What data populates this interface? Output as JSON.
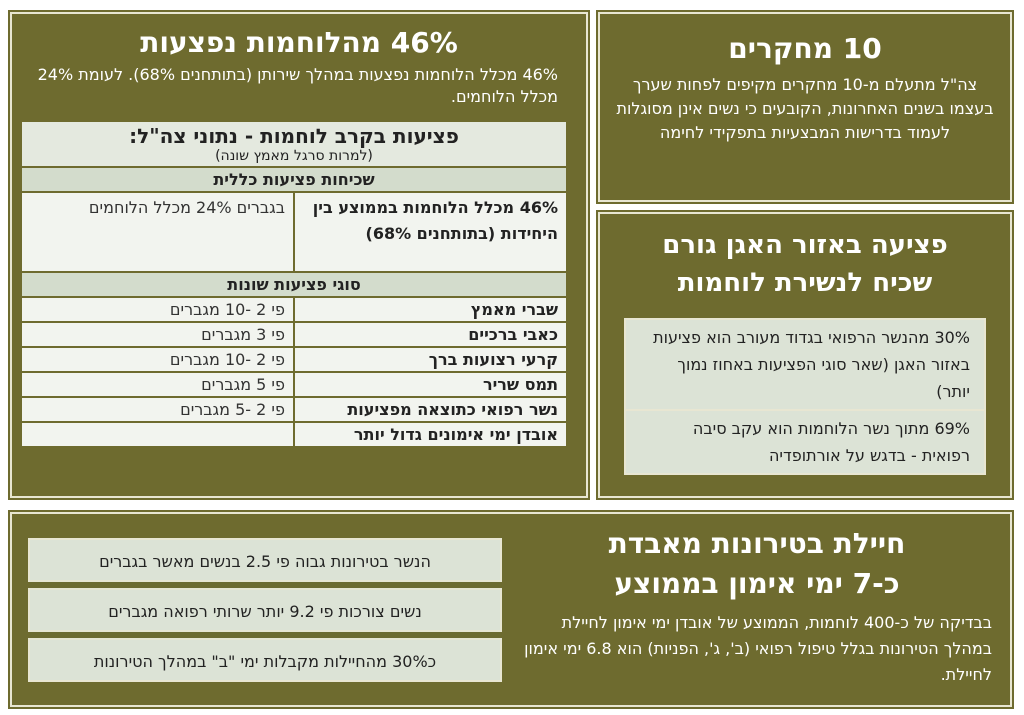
{
  "studies": {
    "title": "10 מחקרים",
    "body": "צה\"ל מתעלם מ-10 מחקרים מקיפים לפחות שערך בעצמו בשנים האחרונות, הקובעים כי נשים אינן מסוגלות לעמוד בדרישות המבצעיות בתפקידי לחימה"
  },
  "pelvic": {
    "title_line1": "פציעה באזור האגן גורם",
    "title_line2": "שכיח לנשירת לוחמות",
    "cells": [
      "30% מהנשר הרפואי בגדוד מעורב הוא פציעות באזור האגן (שאר סוגי הפציעות באחוז נמוך יותר)",
      "69% מתוך נשר הלוחמות הוא עקב סיבה רפואית - בדגש על אורתופדיה"
    ]
  },
  "injuries": {
    "title": "46% מהלוחמות נפצעות",
    "body": "46% מכלל הלוחמות נפצעות במהלך שירותן (בתותחנים 68%). לעומת 24% מכלל הלוחמים.",
    "table": {
      "title": "פציעות בקרב לוחמות - נתוני צה\"ל:",
      "subtitle": "(למרות סרגל מאמץ שונה)",
      "section1": "שכיחות פציעות כללית",
      "general_right": "46% מכלל הלוחמות בממוצע בין היחידות (בתותחנים 68%)",
      "general_left": "בגברים 24% מכלל הלוחמים",
      "section2": "סוגי פציעות שונות",
      "rows": [
        {
          "type": "שברי מאמץ",
          "ratio": "פי 2 -10 מגברים"
        },
        {
          "type": "כאבי ברכיים",
          "ratio": "פי 3 מגברים"
        },
        {
          "type": "קרעי רצועות ברך",
          "ratio": "פי 2 -10 מגברים"
        },
        {
          "type": "תמס שריר",
          "ratio": "פי 5 מגברים"
        },
        {
          "type": "נשר רפואי כתוצאה מפציעות",
          "ratio": "פי 2 -5 מגברים"
        },
        {
          "type": "אובדן ימי אימונים גדול יותר",
          "ratio": ""
        }
      ]
    }
  },
  "female": {
    "title_line1": "חיילת בטירונות מאבדת",
    "title_line2": "כ-7 ימי אימון בממוצע",
    "body": "בבדיקה של כ-400 לוחמות, הממוצע של אובדן ימי אימון לחיילת במהלך הטירונות בגלל טיפול רפואי (ב', ג', הפניות) הוא 6.8 ימי אימון לחיילת.",
    "boxes": [
      "הנשר בטירונות גבוה פי 2.5 בנשים מאשר בגברים",
      "נשים צורכות פי 9.2 יותר שרותי רפואה מגברים",
      "כ30% מהחיילות מקבלות ימי \"ב\" במהלך הטירונות"
    ]
  },
  "colors": {
    "panel": "#6e6b2f",
    "cell": "#dce3d6",
    "border": "#e8e6d2"
  }
}
